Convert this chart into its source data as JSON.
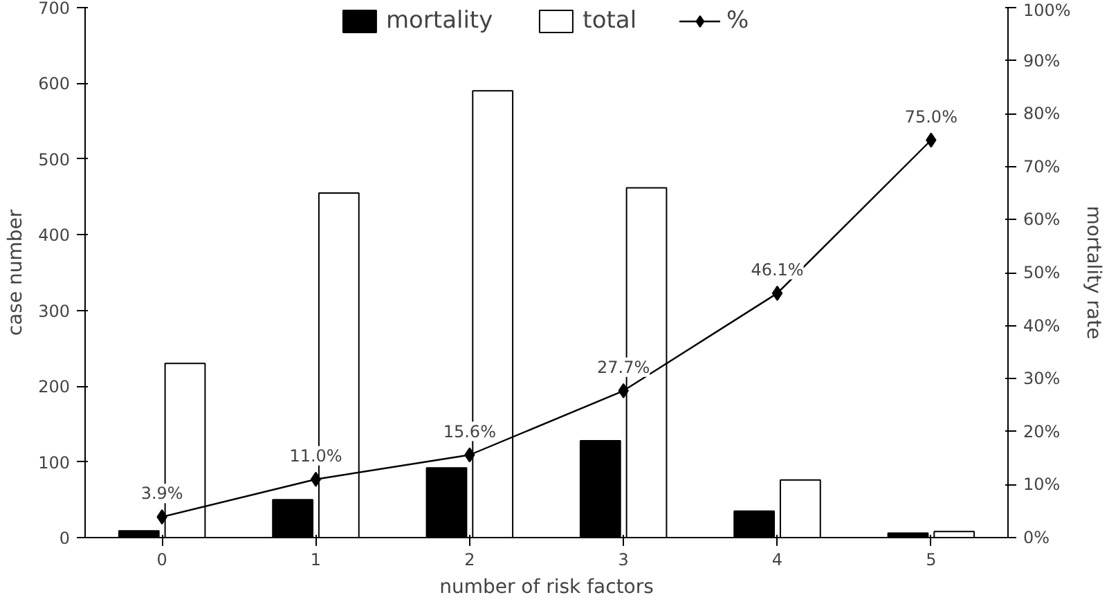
{
  "chart_data": {
    "type": "bar",
    "categories": [
      "0",
      "1",
      "2",
      "3",
      "4",
      "5"
    ],
    "xlabel": "number of risk factors",
    "ylabel": "case number",
    "y2label": "mortality rate",
    "ylim": [
      0,
      700
    ],
    "yticks": [
      0,
      100,
      200,
      300,
      400,
      500,
      600,
      700
    ],
    "y2lim": [
      0,
      100
    ],
    "y2ticks": [
      {
        "value": 0,
        "label": "0%"
      },
      {
        "value": 10,
        "label": "10%"
      },
      {
        "value": 20,
        "label": "20%"
      },
      {
        "value": 30,
        "label": "30%"
      },
      {
        "value": 40,
        "label": "40%"
      },
      {
        "value": 50,
        "label": "50%"
      },
      {
        "value": 60,
        "label": "60%"
      },
      {
        "value": 70,
        "label": "70%"
      },
      {
        "value": 80,
        "label": "80%"
      },
      {
        "value": 90,
        "label": "90%"
      },
      {
        "value": 100,
        "label": "100%"
      }
    ],
    "legend": "top",
    "marker": "diamond",
    "series": [
      {
        "name": "mortality",
        "color": "#000000",
        "values": [
          9,
          50,
          92,
          128,
          35,
          6
        ]
      },
      {
        "name": "total",
        "color": "#ffffff",
        "values": [
          230,
          455,
          590,
          462,
          76,
          8
        ]
      },
      {
        "name": "%",
        "type": "line",
        "axis": "y2",
        "color": "#000000",
        "values": [
          3.9,
          11.0,
          15.6,
          27.7,
          46.1,
          75.0
        ],
        "value_labels": [
          "3.9%",
          "11.0%",
          "15.6%",
          "27.7%",
          "46.1%",
          "75.0%"
        ]
      }
    ]
  }
}
